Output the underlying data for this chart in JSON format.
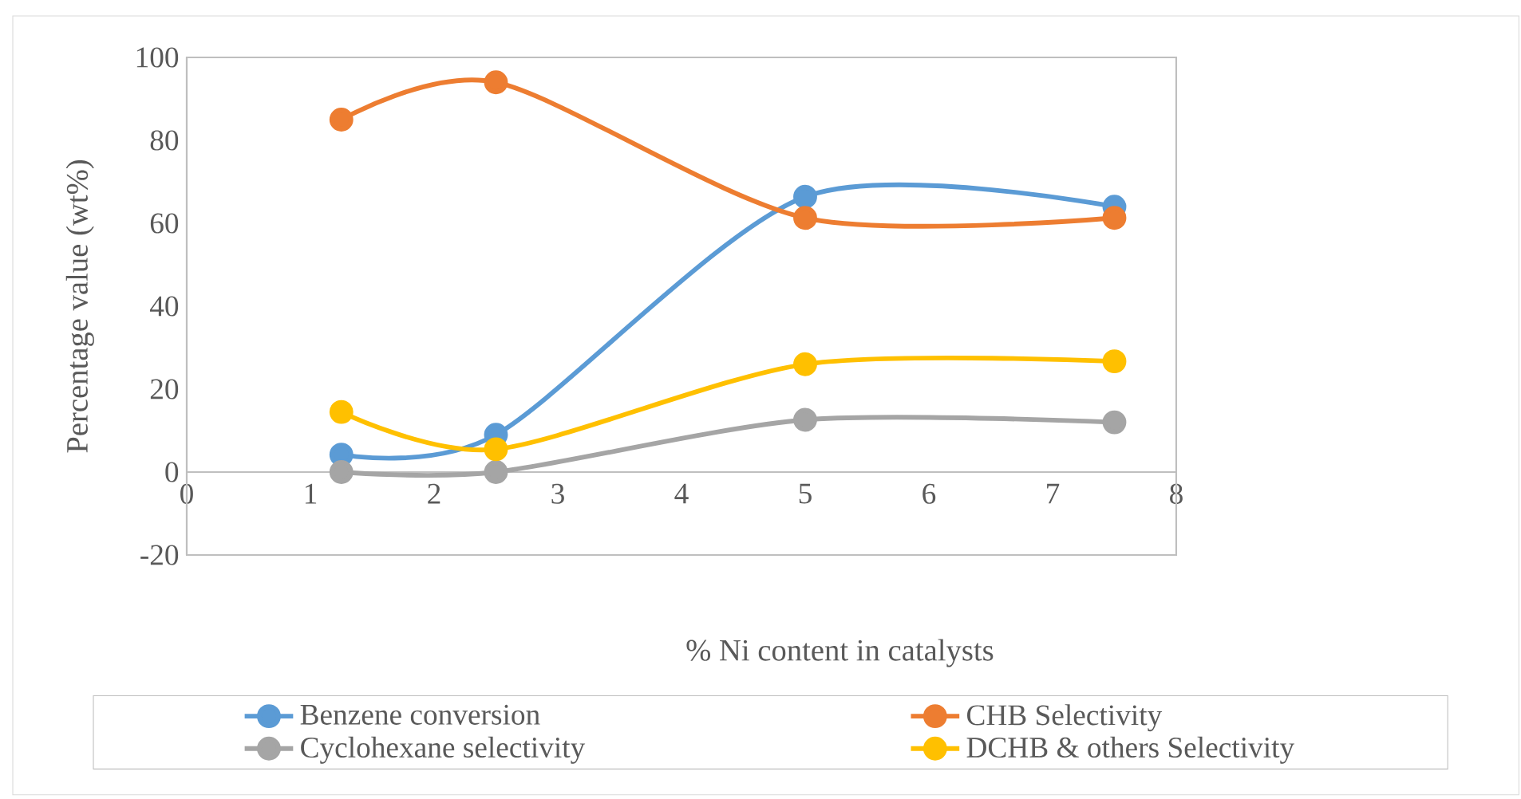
{
  "chart_data": {
    "type": "line",
    "xlabel": "% Ni content in catalysts",
    "ylabel": "Percentage value (wt%)",
    "x": [
      1.25,
      2.5,
      5,
      7.5
    ],
    "series": [
      {
        "name": "Benzene conversion",
        "color": "#5b9bd5",
        "values": [
          4.2,
          9.0,
          66.4,
          64
        ]
      },
      {
        "name": "CHB Selectivity",
        "color": "#ed7d31",
        "values": [
          85,
          94,
          61.3,
          61.3
        ]
      },
      {
        "name": "Cyclohexane selectivity",
        "color": "#a5a5a5",
        "values": [
          0,
          0,
          12.6,
          12
        ]
      },
      {
        "name": "DCHB & others Selectivity",
        "color": "#ffc000",
        "values": [
          14.5,
          5.5,
          26,
          26.7
        ]
      }
    ],
    "xlim": [
      0,
      8
    ],
    "xticks": [
      0,
      1,
      2,
      3,
      4,
      5,
      6,
      7,
      8
    ],
    "ylim": [
      -20,
      100
    ],
    "yticks": [
      -20,
      0,
      20,
      40,
      60,
      80,
      100
    ],
    "legend": "bottom",
    "marker": "circle",
    "line_style": "solid"
  }
}
